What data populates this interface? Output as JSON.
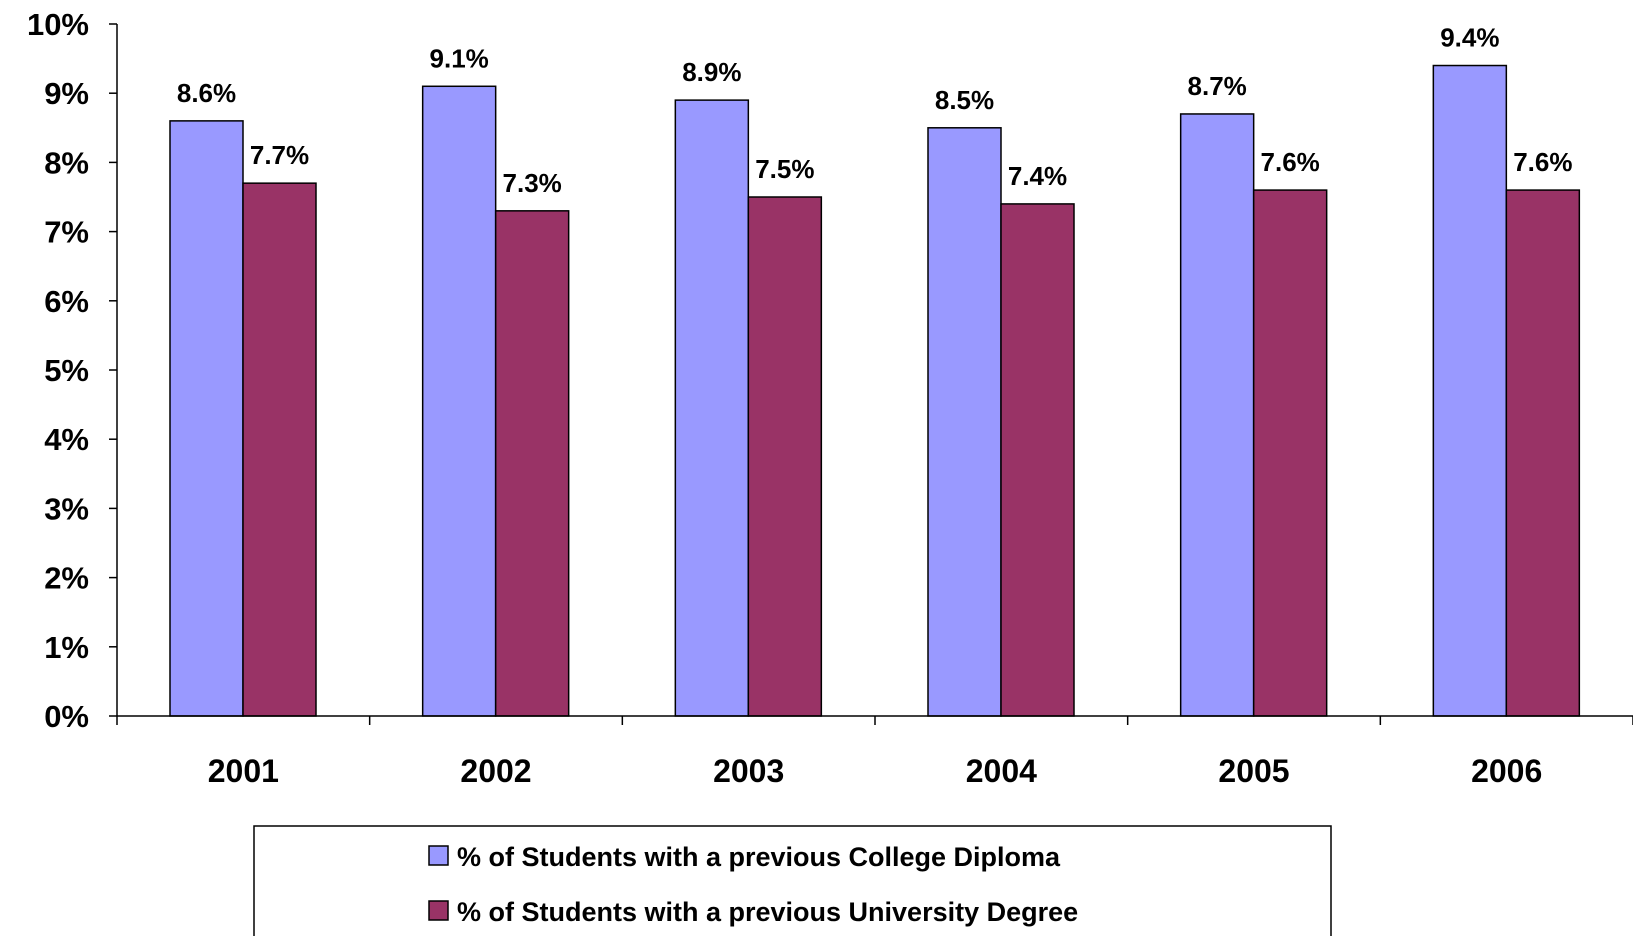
{
  "chart_data": {
    "type": "bar",
    "categories": [
      "2001",
      "2002",
      "2003",
      "2004",
      "2005",
      "2006"
    ],
    "series": [
      {
        "name": "% of Students with a previous College Diploma",
        "values": [
          8.6,
          9.1,
          8.9,
          8.5,
          8.7,
          9.4
        ],
        "labels": [
          "8.6%",
          "9.1%",
          "8.9%",
          "8.5%",
          "8.7%",
          "9.4%"
        ],
        "color": "#9999FF"
      },
      {
        "name": "% of Students with a previous University Degree",
        "values": [
          7.7,
          7.3,
          7.5,
          7.4,
          7.6,
          7.6
        ],
        "labels": [
          "7.7%",
          "7.3%",
          "7.5%",
          "7.4%",
          "7.6%",
          "7.6%"
        ],
        "color": "#993366"
      }
    ],
    "y_ticks": [
      "0%",
      "1%",
      "2%",
      "3%",
      "4%",
      "5%",
      "6%",
      "7%",
      "8%",
      "9%",
      "10%"
    ],
    "ylim": [
      0,
      10
    ],
    "title": "",
    "xlabel": "",
    "ylabel": "",
    "grid": false,
    "legend_position": "bottom"
  }
}
